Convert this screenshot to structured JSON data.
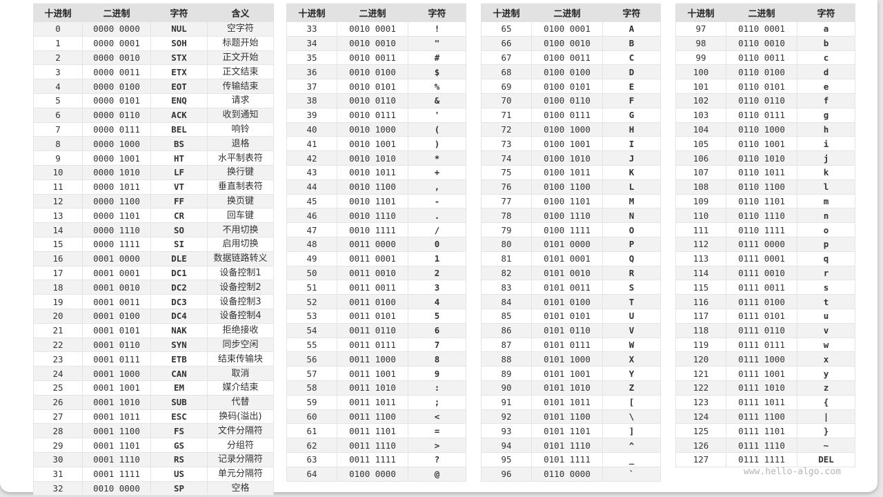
{
  "headers": {
    "dec": "十进制",
    "bin": "二进制",
    "char": "字符",
    "meaning": "含义"
  },
  "watermark": "www.hello-algo.com",
  "tables": [
    [
      [
        "0",
        "0000 0000",
        "NUL",
        "空字符"
      ],
      [
        "1",
        "0000 0001",
        "SOH",
        "标题开始"
      ],
      [
        "2",
        "0000 0010",
        "STX",
        "正文开始"
      ],
      [
        "3",
        "0000 0011",
        "ETX",
        "正文结束"
      ],
      [
        "4",
        "0000 0100",
        "EOT",
        "传输结束"
      ],
      [
        "5",
        "0000 0101",
        "ENQ",
        "请求"
      ],
      [
        "6",
        "0000 0110",
        "ACK",
        "收到通知"
      ],
      [
        "7",
        "0000 0111",
        "BEL",
        "响铃"
      ],
      [
        "8",
        "0000 1000",
        "BS",
        "退格"
      ],
      [
        "9",
        "0000 1001",
        "HT",
        "水平制表符"
      ],
      [
        "10",
        "0000 1010",
        "LF",
        "换行键"
      ],
      [
        "11",
        "0000 1011",
        "VT",
        "垂直制表符"
      ],
      [
        "12",
        "0000 1100",
        "FF",
        "换页键"
      ],
      [
        "13",
        "0000 1101",
        "CR",
        "回车键"
      ],
      [
        "14",
        "0000 1110",
        "SO",
        "不用切换"
      ],
      [
        "15",
        "0000 1111",
        "SI",
        "启用切换"
      ],
      [
        "16",
        "0001 0000",
        "DLE",
        "数据链路转义"
      ],
      [
        "17",
        "0001 0001",
        "DC1",
        "设备控制1"
      ],
      [
        "18",
        "0001 0010",
        "DC2",
        "设备控制2"
      ],
      [
        "19",
        "0001 0011",
        "DC3",
        "设备控制3"
      ],
      [
        "20",
        "0001 0100",
        "DC4",
        "设备控制4"
      ],
      [
        "21",
        "0001 0101",
        "NAK",
        "拒绝接收"
      ],
      [
        "22",
        "0001 0110",
        "SYN",
        "同步空闲"
      ],
      [
        "23",
        "0001 0111",
        "ETB",
        "结束传输块"
      ],
      [
        "24",
        "0001 1000",
        "CAN",
        "取消"
      ],
      [
        "25",
        "0001 1001",
        "EM",
        "媒介结束"
      ],
      [
        "26",
        "0001 1010",
        "SUB",
        "代替"
      ],
      [
        "27",
        "0001 1011",
        "ESC",
        "换码(溢出)"
      ],
      [
        "28",
        "0001 1100",
        "FS",
        "文件分隔符"
      ],
      [
        "29",
        "0001 1101",
        "GS",
        "分组符"
      ],
      [
        "30",
        "0001 1110",
        "RS",
        "记录分隔符"
      ],
      [
        "31",
        "0001 1111",
        "US",
        "单元分隔符"
      ],
      [
        "32",
        "0010 0000",
        "SP",
        "空格"
      ]
    ],
    [
      [
        "33",
        "0010 0001",
        "!"
      ],
      [
        "34",
        "0010 0010",
        "\""
      ],
      [
        "35",
        "0010 0011",
        "#"
      ],
      [
        "36",
        "0010 0100",
        "$"
      ],
      [
        "37",
        "0010 0101",
        "%"
      ],
      [
        "38",
        "0010 0110",
        "&"
      ],
      [
        "39",
        "0010 0111",
        "'"
      ],
      [
        "40",
        "0010 1000",
        "("
      ],
      [
        "41",
        "0010 1001",
        ")"
      ],
      [
        "42",
        "0010 1010",
        "*"
      ],
      [
        "43",
        "0010 1011",
        "+"
      ],
      [
        "44",
        "0010 1100",
        ","
      ],
      [
        "45",
        "0010 1101",
        "-"
      ],
      [
        "46",
        "0010 1110",
        "."
      ],
      [
        "47",
        "0010 1111",
        "/"
      ],
      [
        "48",
        "0011 0000",
        "0"
      ],
      [
        "49",
        "0011 0001",
        "1"
      ],
      [
        "50",
        "0011 0010",
        "2"
      ],
      [
        "51",
        "0011 0011",
        "3"
      ],
      [
        "52",
        "0011 0100",
        "4"
      ],
      [
        "53",
        "0011 0101",
        "5"
      ],
      [
        "54",
        "0011 0110",
        "6"
      ],
      [
        "55",
        "0011 0111",
        "7"
      ],
      [
        "56",
        "0011 1000",
        "8"
      ],
      [
        "57",
        "0011 1001",
        "9"
      ],
      [
        "58",
        "0011 1010",
        ":"
      ],
      [
        "59",
        "0011 1011",
        ";"
      ],
      [
        "60",
        "0011 1100",
        "<"
      ],
      [
        "61",
        "0011 1101",
        "="
      ],
      [
        "62",
        "0011 1110",
        ">"
      ],
      [
        "63",
        "0011 1111",
        "?"
      ],
      [
        "64",
        "0100 0000",
        "@"
      ]
    ],
    [
      [
        "65",
        "0100 0001",
        "A"
      ],
      [
        "66",
        "0100 0010",
        "B"
      ],
      [
        "67",
        "0100 0011",
        "C"
      ],
      [
        "68",
        "0100 0100",
        "D"
      ],
      [
        "69",
        "0100 0101",
        "E"
      ],
      [
        "70",
        "0100 0110",
        "F"
      ],
      [
        "71",
        "0100 0111",
        "G"
      ],
      [
        "72",
        "0100 1000",
        "H"
      ],
      [
        "73",
        "0100 1001",
        "I"
      ],
      [
        "74",
        "0100 1010",
        "J"
      ],
      [
        "75",
        "0100 1011",
        "K"
      ],
      [
        "76",
        "0100 1100",
        "L"
      ],
      [
        "77",
        "0100 1101",
        "M"
      ],
      [
        "78",
        "0100 1110",
        "N"
      ],
      [
        "79",
        "0100 1111",
        "O"
      ],
      [
        "80",
        "0101 0000",
        "P"
      ],
      [
        "81",
        "0101 0001",
        "Q"
      ],
      [
        "82",
        "0101 0010",
        "R"
      ],
      [
        "83",
        "0101 0011",
        "S"
      ],
      [
        "84",
        "0101 0100",
        "T"
      ],
      [
        "85",
        "0101 0101",
        "U"
      ],
      [
        "86",
        "0101 0110",
        "V"
      ],
      [
        "87",
        "0101 0111",
        "W"
      ],
      [
        "88",
        "0101 1000",
        "X"
      ],
      [
        "89",
        "0101 1001",
        "Y"
      ],
      [
        "90",
        "0101 1010",
        "Z"
      ],
      [
        "91",
        "0101 1011",
        "["
      ],
      [
        "92",
        "0101 1100",
        "\\"
      ],
      [
        "93",
        "0101 1101",
        "]"
      ],
      [
        "94",
        "0101 1110",
        "^"
      ],
      [
        "95",
        "0101 1111",
        "_"
      ],
      [
        "96",
        "0110 0000",
        "`"
      ]
    ],
    [
      [
        "97",
        "0110 0001",
        "a"
      ],
      [
        "98",
        "0110 0010",
        "b"
      ],
      [
        "99",
        "0110 0011",
        "c"
      ],
      [
        "100",
        "0110 0100",
        "d"
      ],
      [
        "101",
        "0110 0101",
        "e"
      ],
      [
        "102",
        "0110 0110",
        "f"
      ],
      [
        "103",
        "0110 0111",
        "g"
      ],
      [
        "104",
        "0110 1000",
        "h"
      ],
      [
        "105",
        "0110 1001",
        "i"
      ],
      [
        "106",
        "0110 1010",
        "j"
      ],
      [
        "107",
        "0110 1011",
        "k"
      ],
      [
        "108",
        "0110 1100",
        "l"
      ],
      [
        "109",
        "0110 1101",
        "m"
      ],
      [
        "110",
        "0110 1110",
        "n"
      ],
      [
        "111",
        "0110 1111",
        "o"
      ],
      [
        "112",
        "0111 0000",
        "p"
      ],
      [
        "113",
        "0111 0001",
        "q"
      ],
      [
        "114",
        "0111 0010",
        "r"
      ],
      [
        "115",
        "0111 0011",
        "s"
      ],
      [
        "116",
        "0111 0100",
        "t"
      ],
      [
        "117",
        "0111 0101",
        "u"
      ],
      [
        "118",
        "0111 0110",
        "v"
      ],
      [
        "119",
        "0111 0111",
        "w"
      ],
      [
        "120",
        "0111 1000",
        "x"
      ],
      [
        "121",
        "0111 1001",
        "y"
      ],
      [
        "122",
        "0111 1010",
        "z"
      ],
      [
        "123",
        "0111 1011",
        "{"
      ],
      [
        "124",
        "0111 1100",
        "|"
      ],
      [
        "125",
        "0111 1101",
        "}"
      ],
      [
        "126",
        "0111 1110",
        "~"
      ],
      [
        "127",
        "0111 1111",
        "DEL"
      ]
    ]
  ]
}
